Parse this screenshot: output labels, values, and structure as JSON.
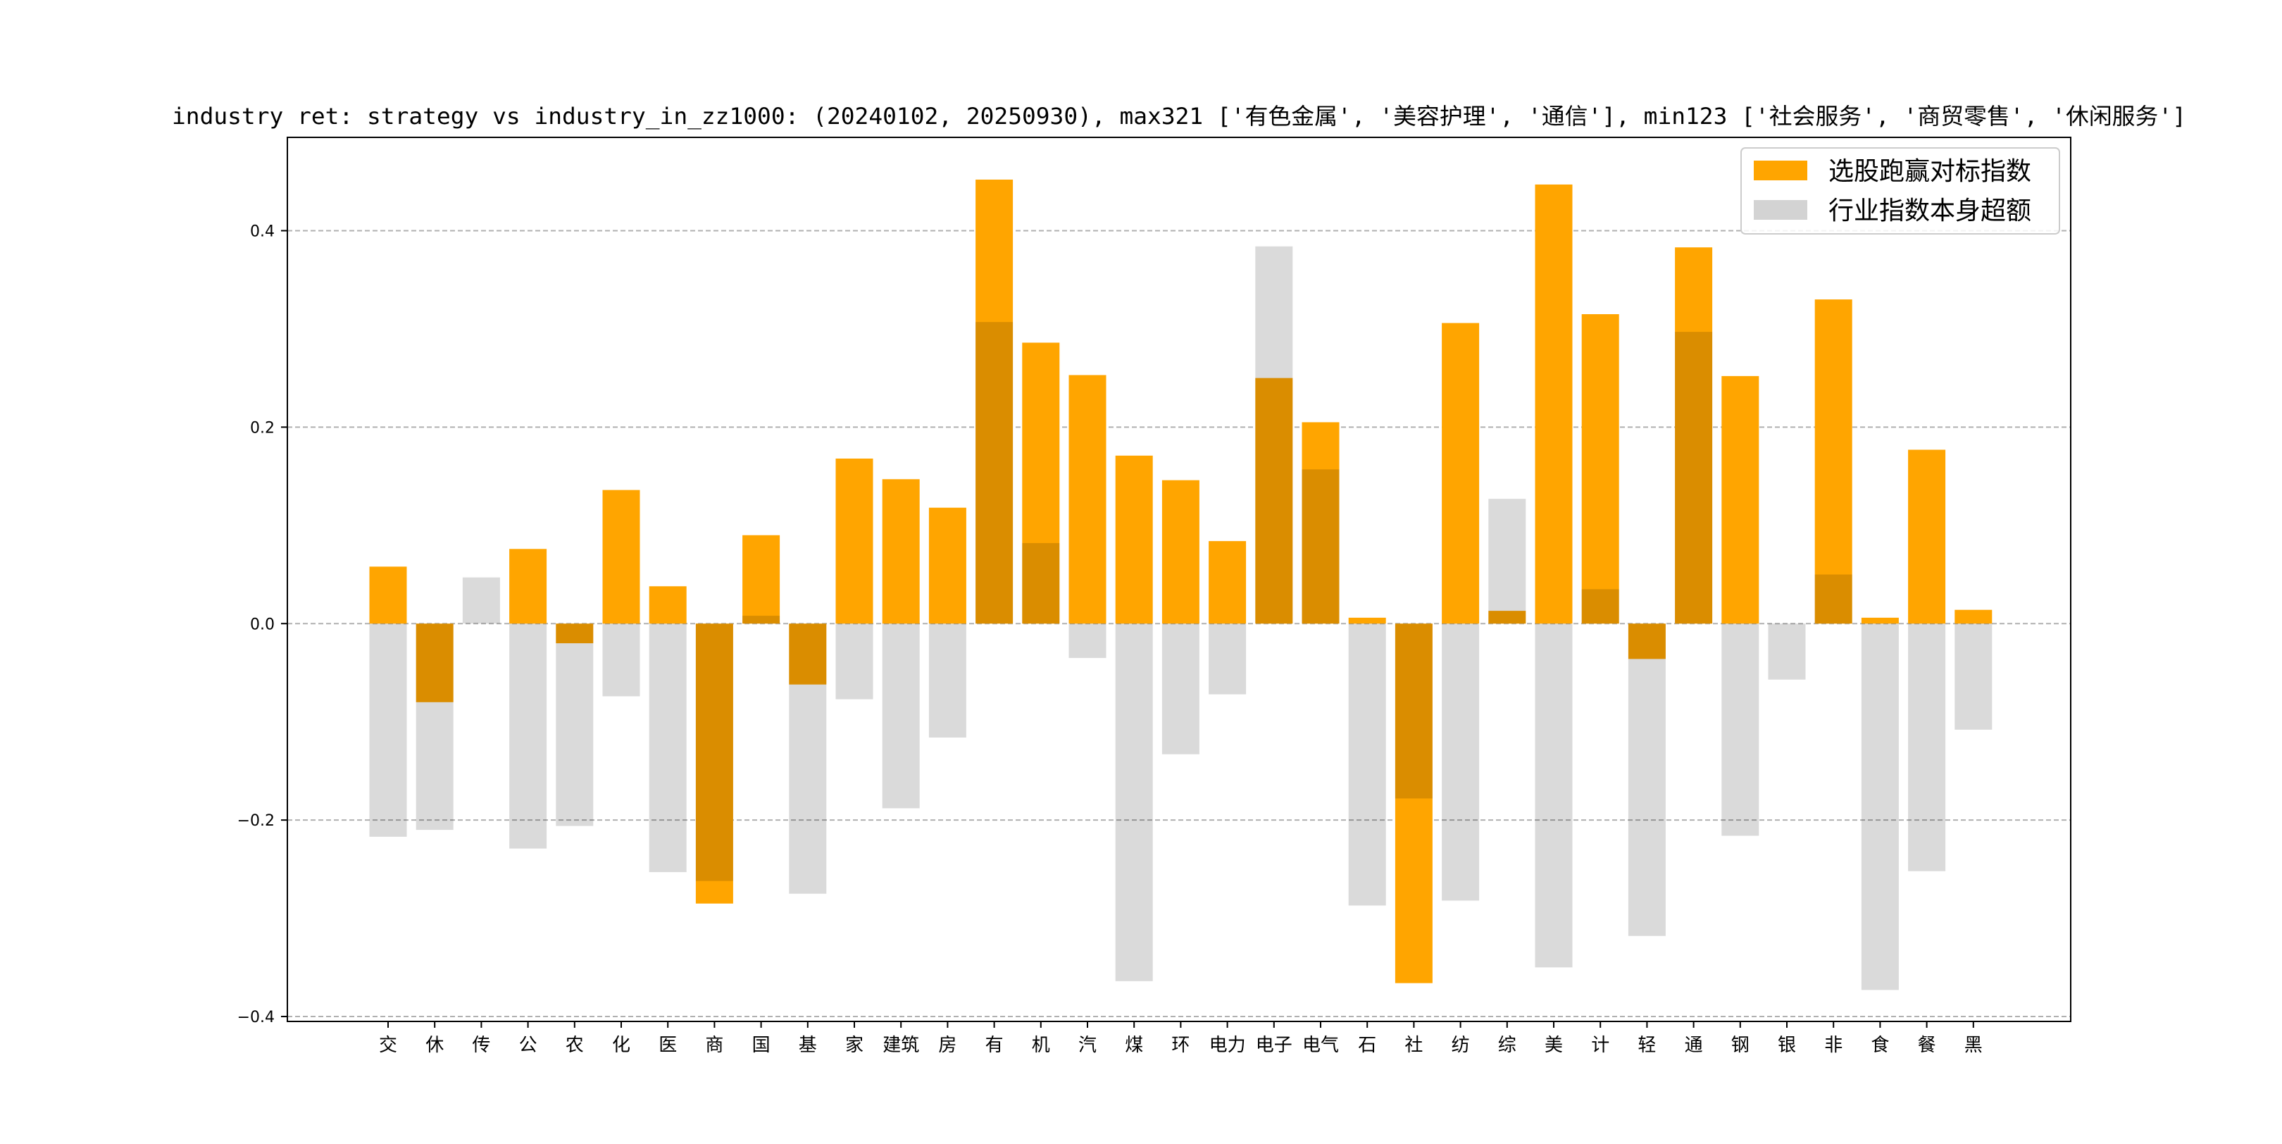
{
  "chart_data": {
    "type": "bar",
    "title": "industry ret: strategy vs industry_in_zz1000: (20240102, 20250930), max321 ['有色金属', '美容护理', '通信'], min123 ['社会服务', '商贸零售', '休闲服务']",
    "xlabel": "",
    "ylabel": "",
    "ylim": [
      -0.405,
      0.495
    ],
    "yticks": [
      -0.4,
      -0.2,
      0.0,
      0.2,
      0.4
    ],
    "ytick_labels": [
      "−0.4",
      "−0.2",
      "0.0",
      "0.2",
      "0.4"
    ],
    "grid": "horizontal dashed",
    "legend_position": "top-right",
    "categories": [
      "交",
      "休",
      "传",
      "公",
      "农",
      "化",
      "医",
      "商",
      "国",
      "基",
      "家",
      "建筑",
      "房",
      "有",
      "机",
      "汽",
      "煤",
      "环",
      "电力",
      "电子",
      "电气",
      "石",
      "社",
      "纺",
      "综",
      "美",
      "计",
      "轻",
      "通",
      "钢",
      "银",
      "非",
      "食",
      "餐",
      "黑"
    ],
    "series": [
      {
        "name": "选股跑赢对标指数",
        "color": "#FFA500",
        "values": [
          0.058,
          -0.08,
          0.0,
          0.076,
          -0.02,
          0.136,
          0.038,
          -0.285,
          0.09,
          -0.062,
          0.168,
          0.147,
          0.118,
          0.452,
          0.286,
          0.253,
          0.171,
          0.146,
          0.084,
          0.25,
          0.205,
          0.006,
          -0.366,
          0.306,
          0.013,
          0.447,
          0.315,
          -0.036,
          0.383,
          0.252,
          0.0,
          0.33,
          0.006,
          0.177,
          0.014
        ]
      },
      {
        "name": "行业指数本身超额",
        "color": "#D3D3D3",
        "values": [
          -0.217,
          -0.21,
          0.047,
          -0.229,
          -0.206,
          -0.074,
          -0.253,
          -0.262,
          0.008,
          -0.275,
          -0.077,
          -0.188,
          -0.116,
          0.307,
          0.082,
          -0.035,
          -0.364,
          -0.133,
          -0.072,
          0.384,
          0.157,
          -0.287,
          -0.178,
          -0.282,
          0.127,
          -0.35,
          0.035,
          -0.318,
          0.297,
          -0.216,
          -0.057,
          0.05,
          -0.373,
          -0.252,
          -0.108
        ]
      }
    ]
  }
}
